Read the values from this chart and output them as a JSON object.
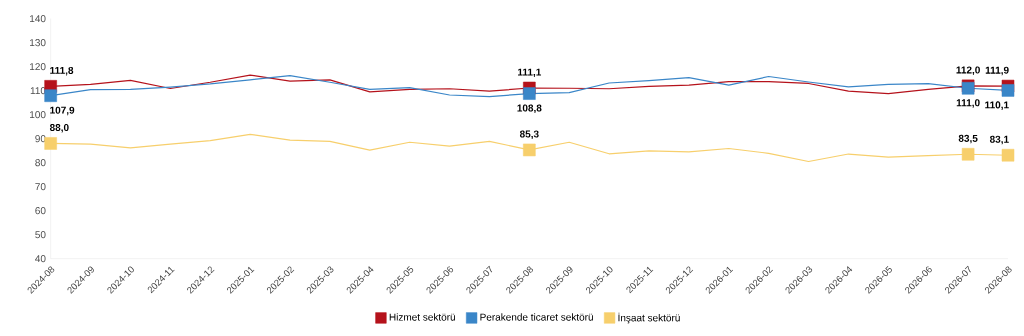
{
  "chart_data": {
    "type": "line",
    "categories": [
      "2024-08",
      "2024-09",
      "2024-10",
      "2024-11",
      "2024-12",
      "2025-01",
      "2025-02",
      "2025-03",
      "2025-04",
      "2025-05",
      "2025-06",
      "2025-07",
      "2025-08",
      "2025-09",
      "2025-10",
      "2025-11",
      "2025-12",
      "2026-01",
      "2026-02",
      "2026-03",
      "2026-04",
      "2026-05",
      "2026-06",
      "2026-07",
      "2026-08"
    ],
    "ylim": [
      40,
      140
    ],
    "yticks": [
      40,
      50,
      60,
      70,
      80,
      90,
      100,
      110,
      120,
      130,
      140
    ],
    "legend": "bottom",
    "grid": false,
    "series": [
      {
        "name": "Hizmet sektörü",
        "color": "#b5121b",
        "values": [
          111.8,
          112.6,
          114.3,
          110.9,
          113.5,
          116.5,
          114.0,
          114.5,
          109.5,
          110.5,
          110.8,
          109.8,
          111.1,
          111.0,
          110.8,
          111.8,
          112.3,
          113.8,
          113.8,
          113.0,
          109.8,
          108.8,
          110.5,
          112.0,
          111.9
        ],
        "value_labels": [
          "111,8",
          null,
          null,
          null,
          null,
          null,
          null,
          null,
          null,
          null,
          null,
          null,
          "111,1",
          null,
          null,
          null,
          null,
          null,
          null,
          null,
          null,
          null,
          null,
          "112,0",
          "111,9"
        ]
      },
      {
        "name": "Perakende ticaret sektörü",
        "color": "#3a86c8",
        "values": [
          107.9,
          110.4,
          110.5,
          111.5,
          112.8,
          114.5,
          116.3,
          113.5,
          110.5,
          111.3,
          108.2,
          107.5,
          108.8,
          109.2,
          113.2,
          114.2,
          115.4,
          112.3,
          115.9,
          113.6,
          111.6,
          112.6,
          112.9,
          111.0,
          110.1
        ],
        "value_labels": [
          "107,9",
          null,
          null,
          null,
          null,
          null,
          null,
          null,
          null,
          null,
          null,
          null,
          "108,8",
          null,
          null,
          null,
          null,
          null,
          null,
          null,
          null,
          null,
          null,
          "111,0",
          "110,1"
        ]
      },
      {
        "name": "İnşaat sektörü",
        "color": "#f7cf6c",
        "values": [
          88.0,
          87.7,
          86.2,
          87.7,
          89.2,
          91.8,
          89.4,
          88.9,
          85.2,
          88.5,
          86.9,
          88.9,
          85.3,
          88.5,
          83.7,
          84.9,
          84.5,
          85.9,
          83.9,
          80.5,
          83.6,
          82.3,
          82.9,
          83.5,
          83.1
        ],
        "value_labels": [
          "88,0",
          null,
          null,
          null,
          null,
          null,
          null,
          null,
          null,
          null,
          null,
          null,
          "85,3",
          null,
          null,
          null,
          null,
          null,
          null,
          null,
          null,
          null,
          null,
          "83,5",
          "83,1"
        ]
      }
    ]
  }
}
